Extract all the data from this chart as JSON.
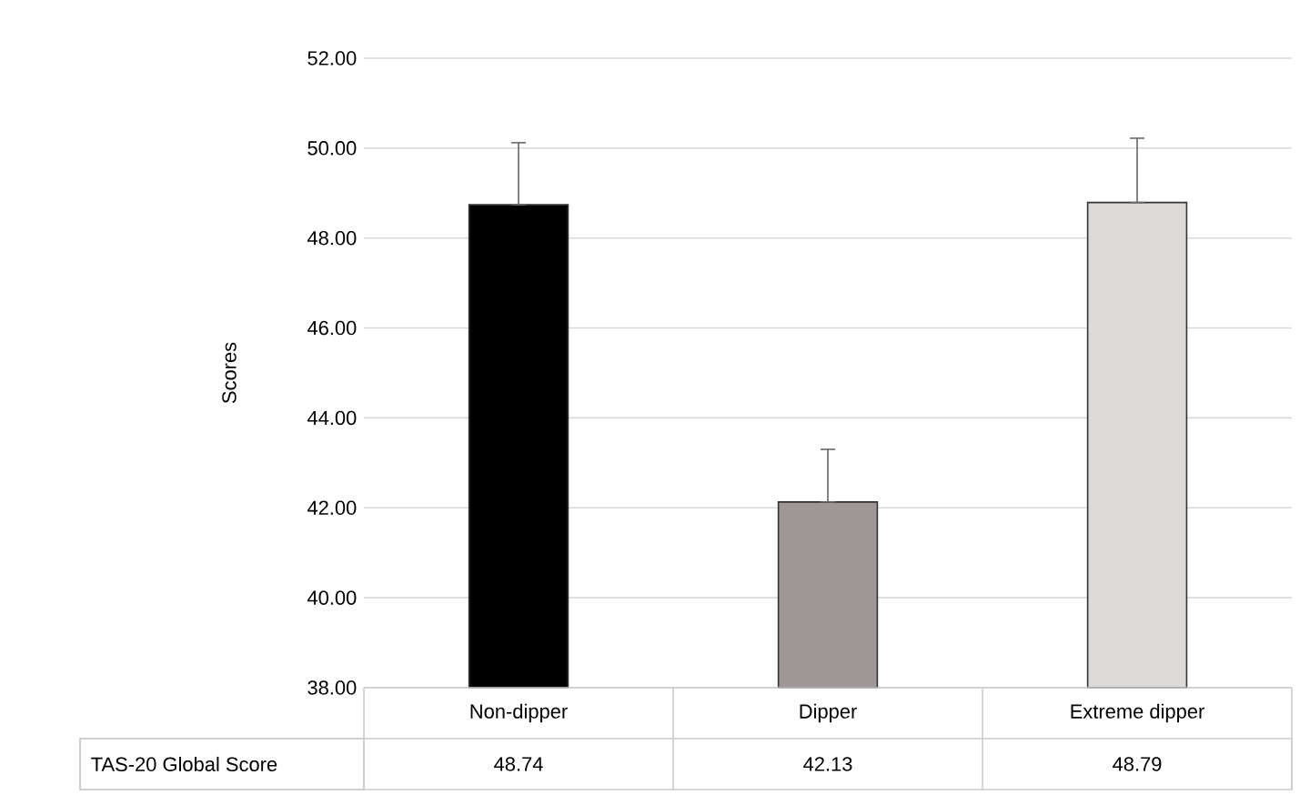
{
  "chart_data": {
    "type": "bar",
    "ylabel": "Scores",
    "categories": [
      "Non-dipper",
      "Dipper",
      "Extreme dipper"
    ],
    "series": [
      {
        "name": "TAS-20 Global Score",
        "colors": [
          "#000000",
          "#9e9796",
          "#dbdad9"
        ],
        "values": [
          48.74,
          42.13,
          48.79
        ],
        "errors": [
          [
            48.74,
            50.12
          ],
          [
            42.13,
            43.3
          ],
          [
            48.79,
            50.22
          ]
        ]
      }
    ],
    "ylim": [
      38,
      52
    ],
    "yticks": [
      {
        "value": 38,
        "label": "38.00"
      },
      {
        "value": 40,
        "label": "40.00"
      },
      {
        "value": 42,
        "label": "42.00"
      },
      {
        "value": 44,
        "label": "44.00"
      },
      {
        "value": 46,
        "label": "46.00"
      },
      {
        "value": 48,
        "label": "48.00"
      },
      {
        "value": 50,
        "label": "50.00"
      },
      {
        "value": 52,
        "label": "52.00"
      }
    ],
    "grid": "y",
    "data_labels": true
  }
}
